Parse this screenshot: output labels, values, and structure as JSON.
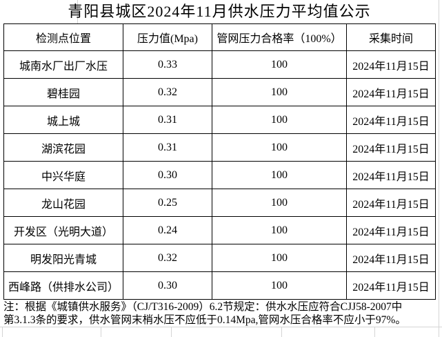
{
  "title": "青阳县城区2024年11月供水压力平均值公示",
  "table": {
    "headers": [
      "检测点位置",
      "压力值(Mpa)",
      "管网压力合格率（100%）",
      "采集时间"
    ],
    "rows": [
      [
        "城南水厂出厂水压",
        "0.33",
        "100",
        "2024年11月15日"
      ],
      [
        "碧桂园",
        "0.32",
        "100",
        "2024年11月15日"
      ],
      [
        "城上城",
        "0.31",
        "100",
        "2024年11月15日"
      ],
      [
        "湖滨花园",
        "0.31",
        "100",
        "2024年11月15日"
      ],
      [
        "中兴华庭",
        "0.30",
        "100",
        "2024年11月15日"
      ],
      [
        "龙山花园",
        "0.25",
        "100",
        "2024年11月15日"
      ],
      [
        "开发区（光明大道）",
        "0.24",
        "100",
        "2024年11月15日"
      ],
      [
        "明发阳光青城",
        "0.32",
        "100",
        "2024年11月15日"
      ],
      [
        "西峰路（供排水公司）",
        "0.30",
        "100",
        "2024年11月15日"
      ]
    ]
  },
  "note": {
    "line1": "注：根据《城镇供水服务》（CJ/T316-2009）6.2节规定：供水水压应符合CJJ58-2007中",
    "line2": "第3.1.3条的要求，供水管网末梢水压不应低于0.14Mpa,管网水压合格率不应小于97%。"
  },
  "colors": {
    "text": "#000000",
    "table_border": "#000000",
    "gridline": "#d4d4d4",
    "background": "#ffffff"
  }
}
